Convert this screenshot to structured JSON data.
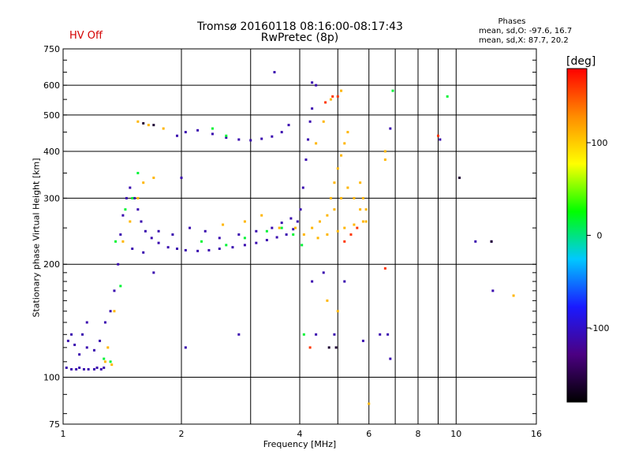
{
  "header": {
    "title": "Tromsø 20160118 08:16:00-08:17:43",
    "subtitle": "RwPretec (8p)",
    "status": "HV Off",
    "status_color": "#d40000",
    "phases_title": "Phases",
    "stat_o": "mean, sd,O: -97.6, 16.7",
    "stat_x": "mean, sd,X:  87.7, 20.2"
  },
  "colorbar": {
    "unit": "[deg]",
    "ticks": [
      {
        "label": "100",
        "value": 100
      },
      {
        "label": "0",
        "value": 0
      },
      {
        "label": "-100",
        "value": -100
      }
    ],
    "range": [
      -180,
      180
    ],
    "colormap": [
      "#000000",
      "#4b0082",
      "#1a1aff",
      "#00c8ff",
      "#00ff00",
      "#ffff00",
      "#ff8c00",
      "#ff0000"
    ]
  },
  "chart_data": {
    "type": "scatter",
    "title": "Tromsø 20160118 08:16:00-08:17:43",
    "subtitle": "RwPretec (8p)",
    "xlabel": "Frequency [MHz]",
    "ylabel": "Stationary phase Virtual Height [km]",
    "xscale": "log",
    "yscale": "log",
    "xlim": [
      1,
      16
    ],
    "ylim": [
      75,
      750
    ],
    "xticks": [
      {
        "label": "1",
        "value": 1
      },
      {
        "label": "2",
        "value": 2
      },
      {
        "label": "4",
        "value": 4
      },
      {
        "label": "6",
        "value": 6
      },
      {
        "label": "8",
        "value": 8
      },
      {
        "label": "10",
        "value": 10
      },
      {
        "label": "16",
        "value": 16
      }
    ],
    "xminor": [
      3,
      5,
      7,
      9
    ],
    "yticks": [
      {
        "label": "75",
        "value": 75
      },
      {
        "label": "100",
        "value": 100
      },
      {
        "label": "200",
        "value": 200
      },
      {
        "label": "300",
        "value": 300
      },
      {
        "label": "400",
        "value": 400
      },
      {
        "label": "500",
        "value": 500
      },
      {
        "label": "600",
        "value": 600
      },
      {
        "label": "750",
        "value": 750
      }
    ],
    "grid": true,
    "series": [
      {
        "color_value": -110,
        "points": [
          [
            1.02,
            106
          ],
          [
            1.05,
            105
          ],
          [
            1.08,
            105
          ],
          [
            1.1,
            106
          ],
          [
            1.13,
            105
          ],
          [
            1.16,
            105
          ],
          [
            1.2,
            105
          ],
          [
            1.22,
            106
          ],
          [
            1.25,
            105
          ],
          [
            1.27,
            106
          ],
          [
            1.03,
            125
          ],
          [
            1.07,
            122
          ],
          [
            1.12,
            130
          ],
          [
            1.15,
            120
          ],
          [
            1.2,
            118
          ],
          [
            1.24,
            125
          ],
          [
            1.28,
            140
          ],
          [
            1.32,
            150
          ],
          [
            1.35,
            170
          ],
          [
            1.38,
            200
          ],
          [
            1.4,
            240
          ],
          [
            1.42,
            270
          ],
          [
            1.45,
            300
          ],
          [
            1.48,
            320
          ],
          [
            1.52,
            300
          ],
          [
            1.55,
            280
          ],
          [
            1.58,
            260
          ],
          [
            1.62,
            245
          ],
          [
            1.68,
            235
          ],
          [
            1.75,
            228
          ],
          [
            1.85,
            222
          ],
          [
            1.95,
            220
          ],
          [
            2.05,
            218
          ],
          [
            2.2,
            217
          ],
          [
            2.35,
            218
          ],
          [
            2.5,
            220
          ],
          [
            2.7,
            222
          ],
          [
            2.9,
            225
          ],
          [
            3.1,
            228
          ],
          [
            3.3,
            232
          ],
          [
            3.5,
            236
          ],
          [
            3.7,
            240
          ],
          [
            3.85,
            248
          ],
          [
            3.95,
            260
          ],
          [
            4.02,
            280
          ],
          [
            4.08,
            320
          ],
          [
            4.15,
            380
          ],
          [
            4.2,
            430
          ],
          [
            4.25,
            480
          ],
          [
            4.3,
            520
          ],
          [
            1.5,
            220
          ],
          [
            1.6,
            215
          ],
          [
            1.75,
            245
          ],
          [
            1.9,
            240
          ],
          [
            2.1,
            250
          ],
          [
            2.3,
            245
          ],
          [
            2.5,
            235
          ],
          [
            2.8,
            240
          ],
          [
            3.1,
            245
          ],
          [
            3.4,
            250
          ],
          [
            3.6,
            258
          ],
          [
            3.8,
            265
          ],
          [
            1.95,
            440
          ],
          [
            2.05,
            450
          ],
          [
            2.2,
            455
          ],
          [
            2.4,
            445
          ],
          [
            2.6,
            435
          ],
          [
            2.8,
            430
          ],
          [
            3.0,
            428
          ],
          [
            3.2,
            432
          ],
          [
            3.4,
            438
          ],
          [
            3.6,
            450
          ],
          [
            3.75,
            470
          ],
          [
            3.45,
            650
          ],
          [
            4.3,
            610
          ],
          [
            4.4,
            600
          ],
          [
            1.05,
            130
          ],
          [
            1.1,
            115
          ],
          [
            1.15,
            140
          ],
          [
            4.6,
            190
          ],
          [
            6.8,
            112
          ],
          [
            6.4,
            130
          ],
          [
            6.8,
            460
          ],
          [
            9.1,
            430
          ],
          [
            11.2,
            230
          ],
          [
            12.3,
            230
          ],
          [
            12.4,
            170
          ],
          [
            2.0,
            340
          ],
          [
            1.7,
            190
          ],
          [
            2.05,
            120
          ],
          [
            2.8,
            130
          ],
          [
            4.4,
            130
          ],
          [
            6.7,
            130
          ],
          [
            4.3,
            180
          ],
          [
            4.9,
            130
          ],
          [
            5.2,
            180
          ],
          [
            5.8,
            125
          ]
        ]
      },
      {
        "color_value": 15,
        "points": [
          [
            1.32,
            110
          ],
          [
            1.27,
            112
          ],
          [
            1.36,
            230
          ],
          [
            1.44,
            280
          ],
          [
            1.5,
            300
          ],
          [
            1.55,
            350
          ],
          [
            2.25,
            230
          ],
          [
            2.6,
            225
          ],
          [
            2.9,
            235
          ],
          [
            3.3,
            245
          ],
          [
            3.6,
            250
          ],
          [
            3.85,
            240
          ],
          [
            4.05,
            225
          ],
          [
            2.4,
            460
          ],
          [
            2.6,
            440
          ],
          [
            9.5,
            560
          ],
          [
            6.9,
            580
          ],
          [
            1.4,
            175
          ],
          [
            4.1,
            130
          ]
        ]
      },
      {
        "color_value": 110,
        "points": [
          [
            1.28,
            110
          ],
          [
            1.33,
            108
          ],
          [
            1.42,
            230
          ],
          [
            1.48,
            260
          ],
          [
            1.55,
            300
          ],
          [
            1.6,
            330
          ],
          [
            1.7,
            340
          ],
          [
            2.55,
            255
          ],
          [
            2.9,
            260
          ],
          [
            3.2,
            270
          ],
          [
            3.55,
            250
          ],
          [
            3.9,
            250
          ],
          [
            4.1,
            240
          ],
          [
            4.3,
            250
          ],
          [
            4.5,
            260
          ],
          [
            4.7,
            270
          ],
          [
            4.9,
            280
          ],
          [
            5.1,
            300
          ],
          [
            5.3,
            320
          ],
          [
            5.5,
            300
          ],
          [
            5.7,
            280
          ],
          [
            5.9,
            260
          ],
          [
            4.45,
            235
          ],
          [
            4.7,
            240
          ],
          [
            5.0,
            245
          ],
          [
            5.2,
            250
          ],
          [
            5.5,
            255
          ],
          [
            5.8,
            260
          ],
          [
            4.8,
            300
          ],
          [
            4.9,
            330
          ],
          [
            5.0,
            360
          ],
          [
            5.1,
            390
          ],
          [
            5.2,
            420
          ],
          [
            5.3,
            450
          ],
          [
            5.7,
            330
          ],
          [
            5.8,
            300
          ],
          [
            5.9,
            280
          ],
          [
            4.4,
            420
          ],
          [
            4.6,
            480
          ],
          [
            4.8,
            550
          ],
          [
            5.1,
            580
          ],
          [
            1.55,
            480
          ],
          [
            1.65,
            470
          ],
          [
            1.8,
            460
          ],
          [
            6.6,
            400
          ],
          [
            6.6,
            380
          ],
          [
            1.3,
            120
          ],
          [
            4.7,
            160
          ],
          [
            5.0,
            150
          ],
          [
            6.0,
            85
          ],
          [
            14.0,
            165
          ],
          [
            1.35,
            150
          ]
        ]
      },
      {
        "color_value": 160,
        "points": [
          [
            4.85,
            560
          ],
          [
            5.0,
            560
          ],
          [
            4.65,
            540
          ],
          [
            4.25,
            120
          ],
          [
            9.0,
            440
          ],
          [
            6.6,
            195
          ],
          [
            5.2,
            230
          ],
          [
            5.4,
            240
          ],
          [
            5.6,
            250
          ]
        ]
      },
      {
        "color_value": -160,
        "points": [
          [
            1.6,
            475
          ],
          [
            1.7,
            470
          ],
          [
            10.2,
            340
          ],
          [
            12.3,
            230
          ],
          [
            4.95,
            120
          ],
          [
            4.75,
            120
          ]
        ]
      }
    ]
  }
}
